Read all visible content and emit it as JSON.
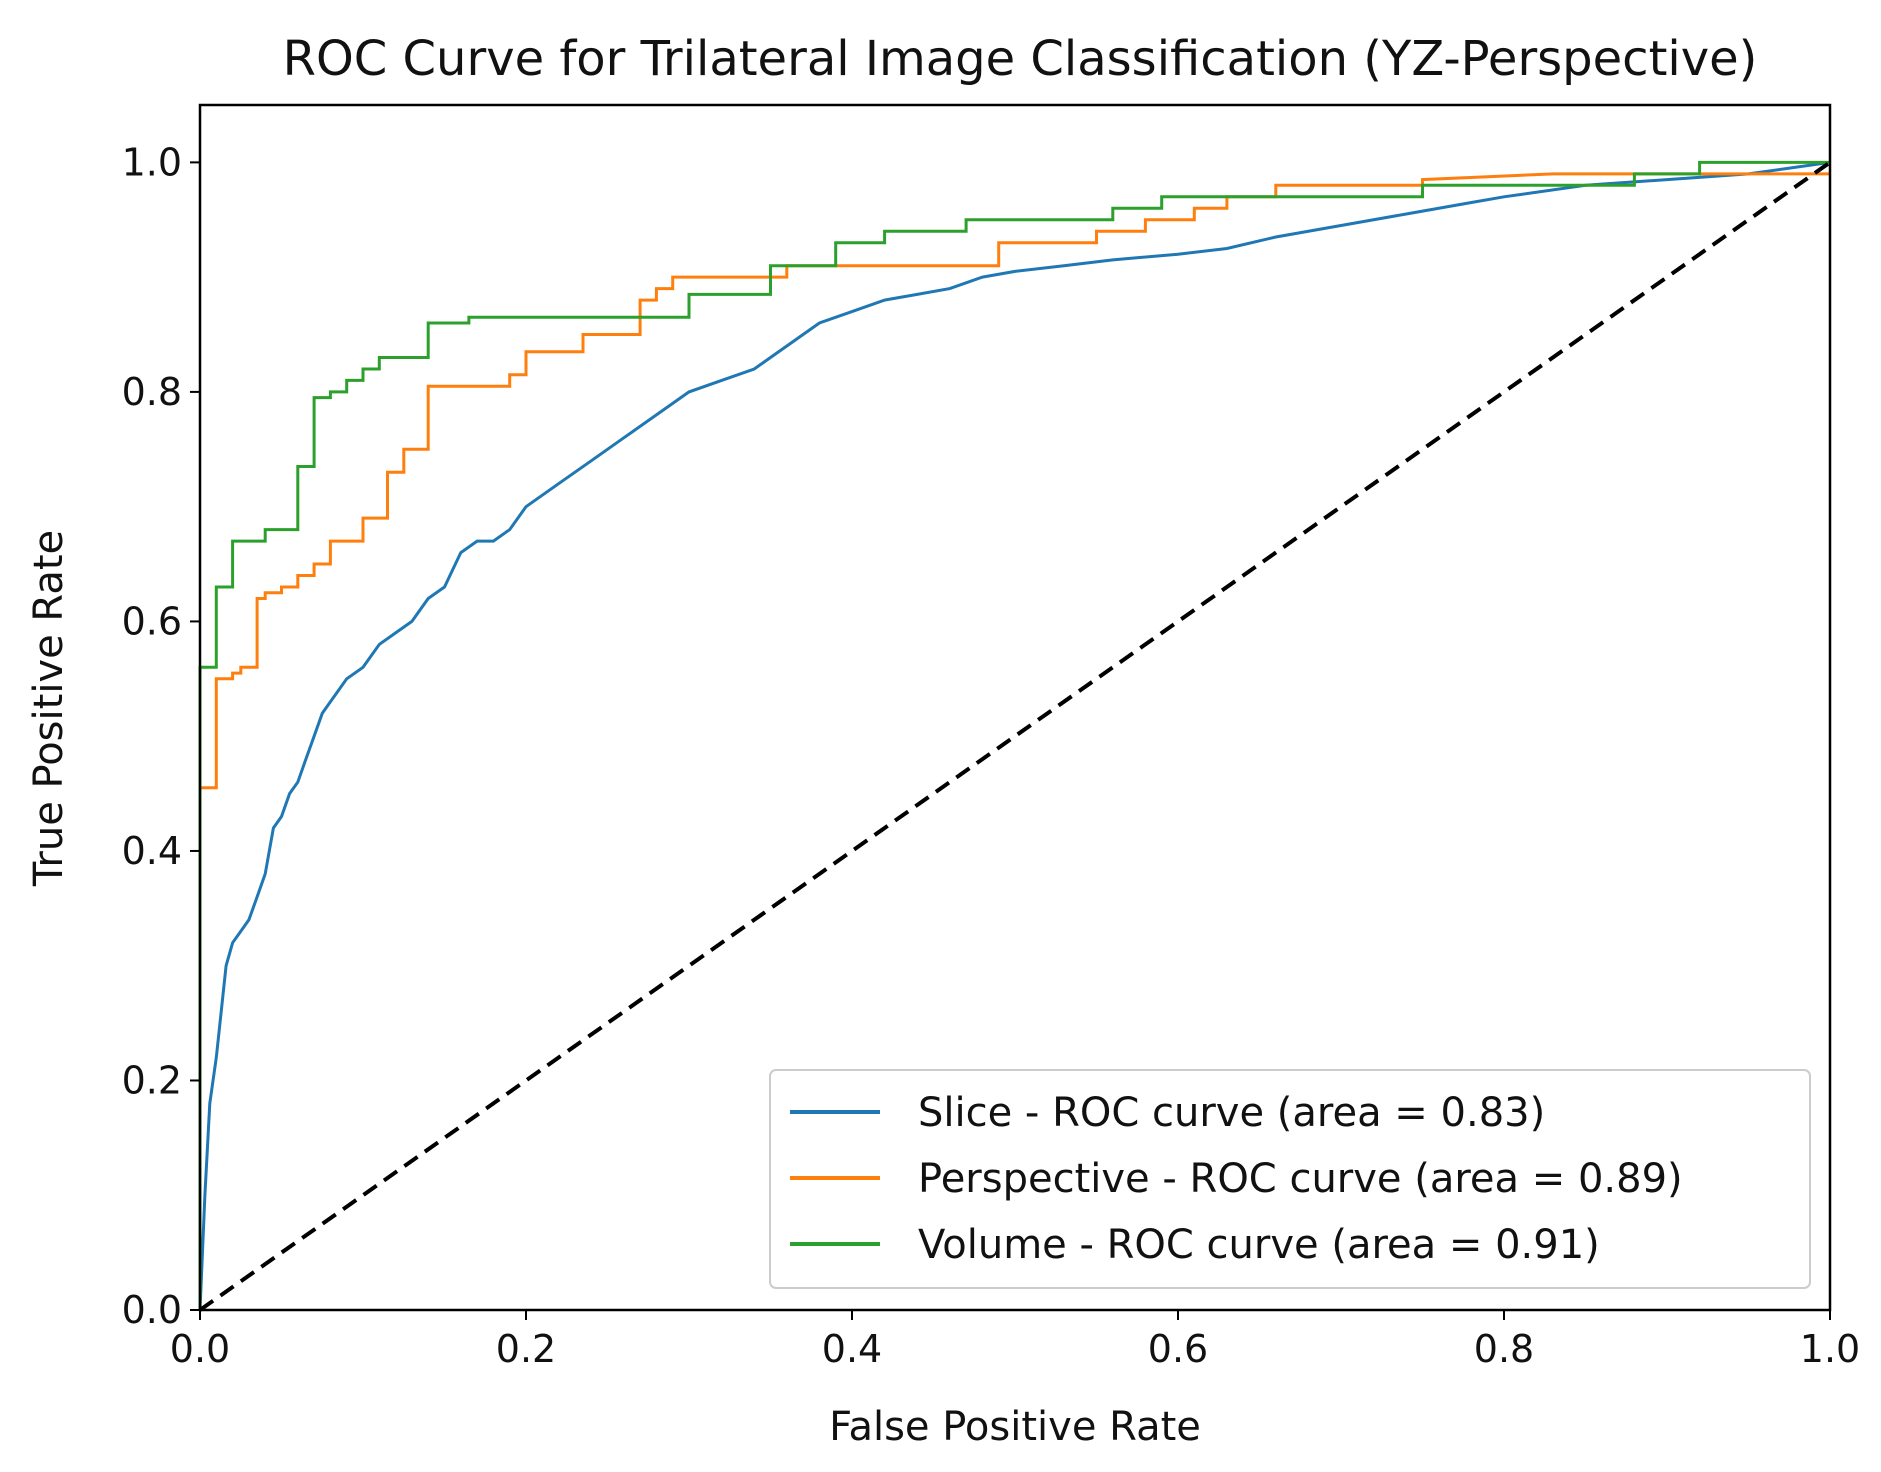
{
  "chart_data": {
    "type": "line",
    "title": "ROC Curve for Trilateral Image Classification (YZ-Perspective)",
    "xlabel": "False Positive Rate",
    "ylabel": "True Positive Rate",
    "xlim": [
      0.0,
      1.0
    ],
    "ylim": [
      0.0,
      1.05
    ],
    "xticks": [
      "0.0",
      "0.2",
      "0.4",
      "0.6",
      "0.8",
      "1.0"
    ],
    "yticks": [
      "0.0",
      "0.2",
      "0.4",
      "0.6",
      "0.8",
      "1.0"
    ],
    "grid": false,
    "legend_position": "bottom-right",
    "series": [
      {
        "name": "Slice - ROC curve (area = 0.83)",
        "color": "#1f77b4",
        "step": false,
        "x": [
          0.0,
          0.003,
          0.006,
          0.01,
          0.013,
          0.016,
          0.02,
          0.025,
          0.03,
          0.035,
          0.04,
          0.045,
          0.05,
          0.055,
          0.06,
          0.065,
          0.07,
          0.075,
          0.08,
          0.085,
          0.09,
          0.1,
          0.11,
          0.12,
          0.13,
          0.14,
          0.15,
          0.16,
          0.17,
          0.18,
          0.19,
          0.2,
          0.22,
          0.24,
          0.26,
          0.28,
          0.3,
          0.32,
          0.34,
          0.36,
          0.38,
          0.4,
          0.42,
          0.44,
          0.46,
          0.48,
          0.5,
          0.53,
          0.56,
          0.6,
          0.63,
          0.66,
          0.7,
          0.74,
          0.78,
          0.8,
          0.85,
          0.9,
          0.95,
          1.0
        ],
        "y": [
          0.0,
          0.1,
          0.18,
          0.22,
          0.26,
          0.3,
          0.32,
          0.33,
          0.34,
          0.36,
          0.38,
          0.42,
          0.43,
          0.45,
          0.46,
          0.48,
          0.5,
          0.52,
          0.53,
          0.54,
          0.55,
          0.56,
          0.58,
          0.59,
          0.6,
          0.62,
          0.63,
          0.66,
          0.67,
          0.67,
          0.68,
          0.7,
          0.72,
          0.74,
          0.76,
          0.78,
          0.8,
          0.81,
          0.82,
          0.84,
          0.86,
          0.87,
          0.88,
          0.885,
          0.89,
          0.9,
          0.905,
          0.91,
          0.915,
          0.92,
          0.925,
          0.935,
          0.945,
          0.955,
          0.965,
          0.97,
          0.98,
          0.985,
          0.99,
          1.0
        ]
      },
      {
        "name": "Perspective - ROC curve (area = 0.89)",
        "color": "#ff7f0e",
        "step": true,
        "x": [
          0.0,
          0.0,
          0.01,
          0.01,
          0.02,
          0.02,
          0.025,
          0.025,
          0.035,
          0.035,
          0.04,
          0.04,
          0.05,
          0.05,
          0.06,
          0.06,
          0.07,
          0.07,
          0.08,
          0.08,
          0.1,
          0.1,
          0.115,
          0.115,
          0.125,
          0.125,
          0.14,
          0.14,
          0.19,
          0.19,
          0.2,
          0.2,
          0.235,
          0.235,
          0.27,
          0.27,
          0.28,
          0.28,
          0.29,
          0.29,
          0.36,
          0.36,
          0.49,
          0.49,
          0.55,
          0.55,
          0.58,
          0.58,
          0.61,
          0.61,
          0.63,
          0.63,
          0.66,
          0.66,
          0.75,
          0.75,
          0.83,
          0.86,
          1.0
        ],
        "y": [
          0.0,
          0.455,
          0.455,
          0.55,
          0.55,
          0.555,
          0.555,
          0.56,
          0.56,
          0.62,
          0.62,
          0.625,
          0.625,
          0.63,
          0.63,
          0.64,
          0.64,
          0.65,
          0.65,
          0.67,
          0.67,
          0.69,
          0.69,
          0.73,
          0.73,
          0.75,
          0.75,
          0.805,
          0.805,
          0.815,
          0.815,
          0.835,
          0.835,
          0.85,
          0.85,
          0.88,
          0.88,
          0.89,
          0.89,
          0.9,
          0.9,
          0.91,
          0.91,
          0.93,
          0.93,
          0.94,
          0.94,
          0.95,
          0.95,
          0.96,
          0.96,
          0.97,
          0.97,
          0.98,
          0.98,
          0.985,
          0.99,
          0.99,
          0.99
        ]
      },
      {
        "name": "Volume - ROC curve (area = 0.91)",
        "color": "#2ca02c",
        "step": true,
        "x": [
          0.0,
          0.0,
          0.01,
          0.01,
          0.02,
          0.02,
          0.03,
          0.03,
          0.04,
          0.04,
          0.06,
          0.06,
          0.07,
          0.07,
          0.08,
          0.08,
          0.09,
          0.09,
          0.1,
          0.1,
          0.11,
          0.11,
          0.14,
          0.14,
          0.165,
          0.165,
          0.3,
          0.3,
          0.35,
          0.35,
          0.39,
          0.39,
          0.42,
          0.42,
          0.47,
          0.47,
          0.56,
          0.56,
          0.59,
          0.59,
          0.75,
          0.75,
          0.88,
          0.88,
          0.92,
          0.92,
          1.0
        ],
        "y": [
          0.0,
          0.56,
          0.56,
          0.63,
          0.63,
          0.67,
          0.67,
          0.67,
          0.67,
          0.68,
          0.68,
          0.735,
          0.735,
          0.795,
          0.795,
          0.8,
          0.8,
          0.81,
          0.81,
          0.82,
          0.82,
          0.83,
          0.83,
          0.86,
          0.86,
          0.865,
          0.865,
          0.885,
          0.885,
          0.91,
          0.91,
          0.93,
          0.93,
          0.94,
          0.94,
          0.95,
          0.95,
          0.96,
          0.96,
          0.97,
          0.97,
          0.98,
          0.98,
          0.99,
          0.99,
          1.0,
          1.0
        ]
      },
      {
        "name": "Chance",
        "color": "#000000",
        "dashed": true,
        "in_legend": false,
        "x": [
          0.0,
          1.0
        ],
        "y": [
          0.0,
          1.0
        ]
      }
    ]
  }
}
